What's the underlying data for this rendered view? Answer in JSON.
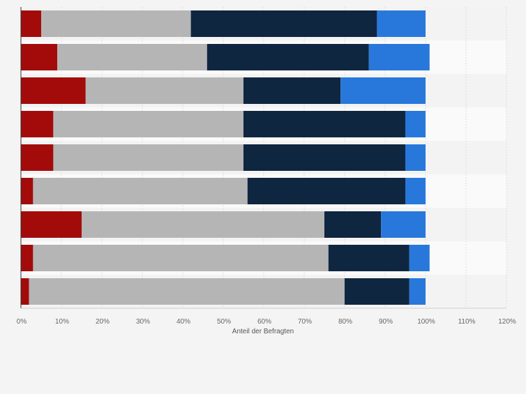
{
  "chart_data": {
    "type": "bar",
    "orientation": "horizontal",
    "stacked": true,
    "title": "",
    "xlabel": "Anteil der Befragten",
    "ylabel": "",
    "xlim": [
      0,
      120
    ],
    "x_ticks": [
      "0%",
      "10%",
      "20%",
      "30%",
      "40%",
      "50%",
      "60%",
      "70%",
      "80%",
      "90%",
      "100%",
      "110%",
      "120%"
    ],
    "categories": [
      "",
      "",
      "",
      "",
      "",
      "",
      "",
      "",
      ""
    ],
    "series": [
      {
        "color": "#a30b0b",
        "values": [
          5,
          9,
          16,
          8,
          8,
          3,
          15,
          3,
          2
        ]
      },
      {
        "color": "#b5b5b5",
        "values": [
          37,
          37,
          39,
          47,
          47,
          53,
          60,
          73,
          78
        ]
      },
      {
        "color": "#0f2640",
        "values": [
          46,
          40,
          24,
          40,
          40,
          39,
          14,
          20,
          16
        ]
      },
      {
        "color": "#2878dc",
        "values": [
          12,
          15,
          21,
          5,
          5,
          5,
          11,
          5,
          4
        ]
      }
    ],
    "grid": true,
    "legend": "none"
  }
}
